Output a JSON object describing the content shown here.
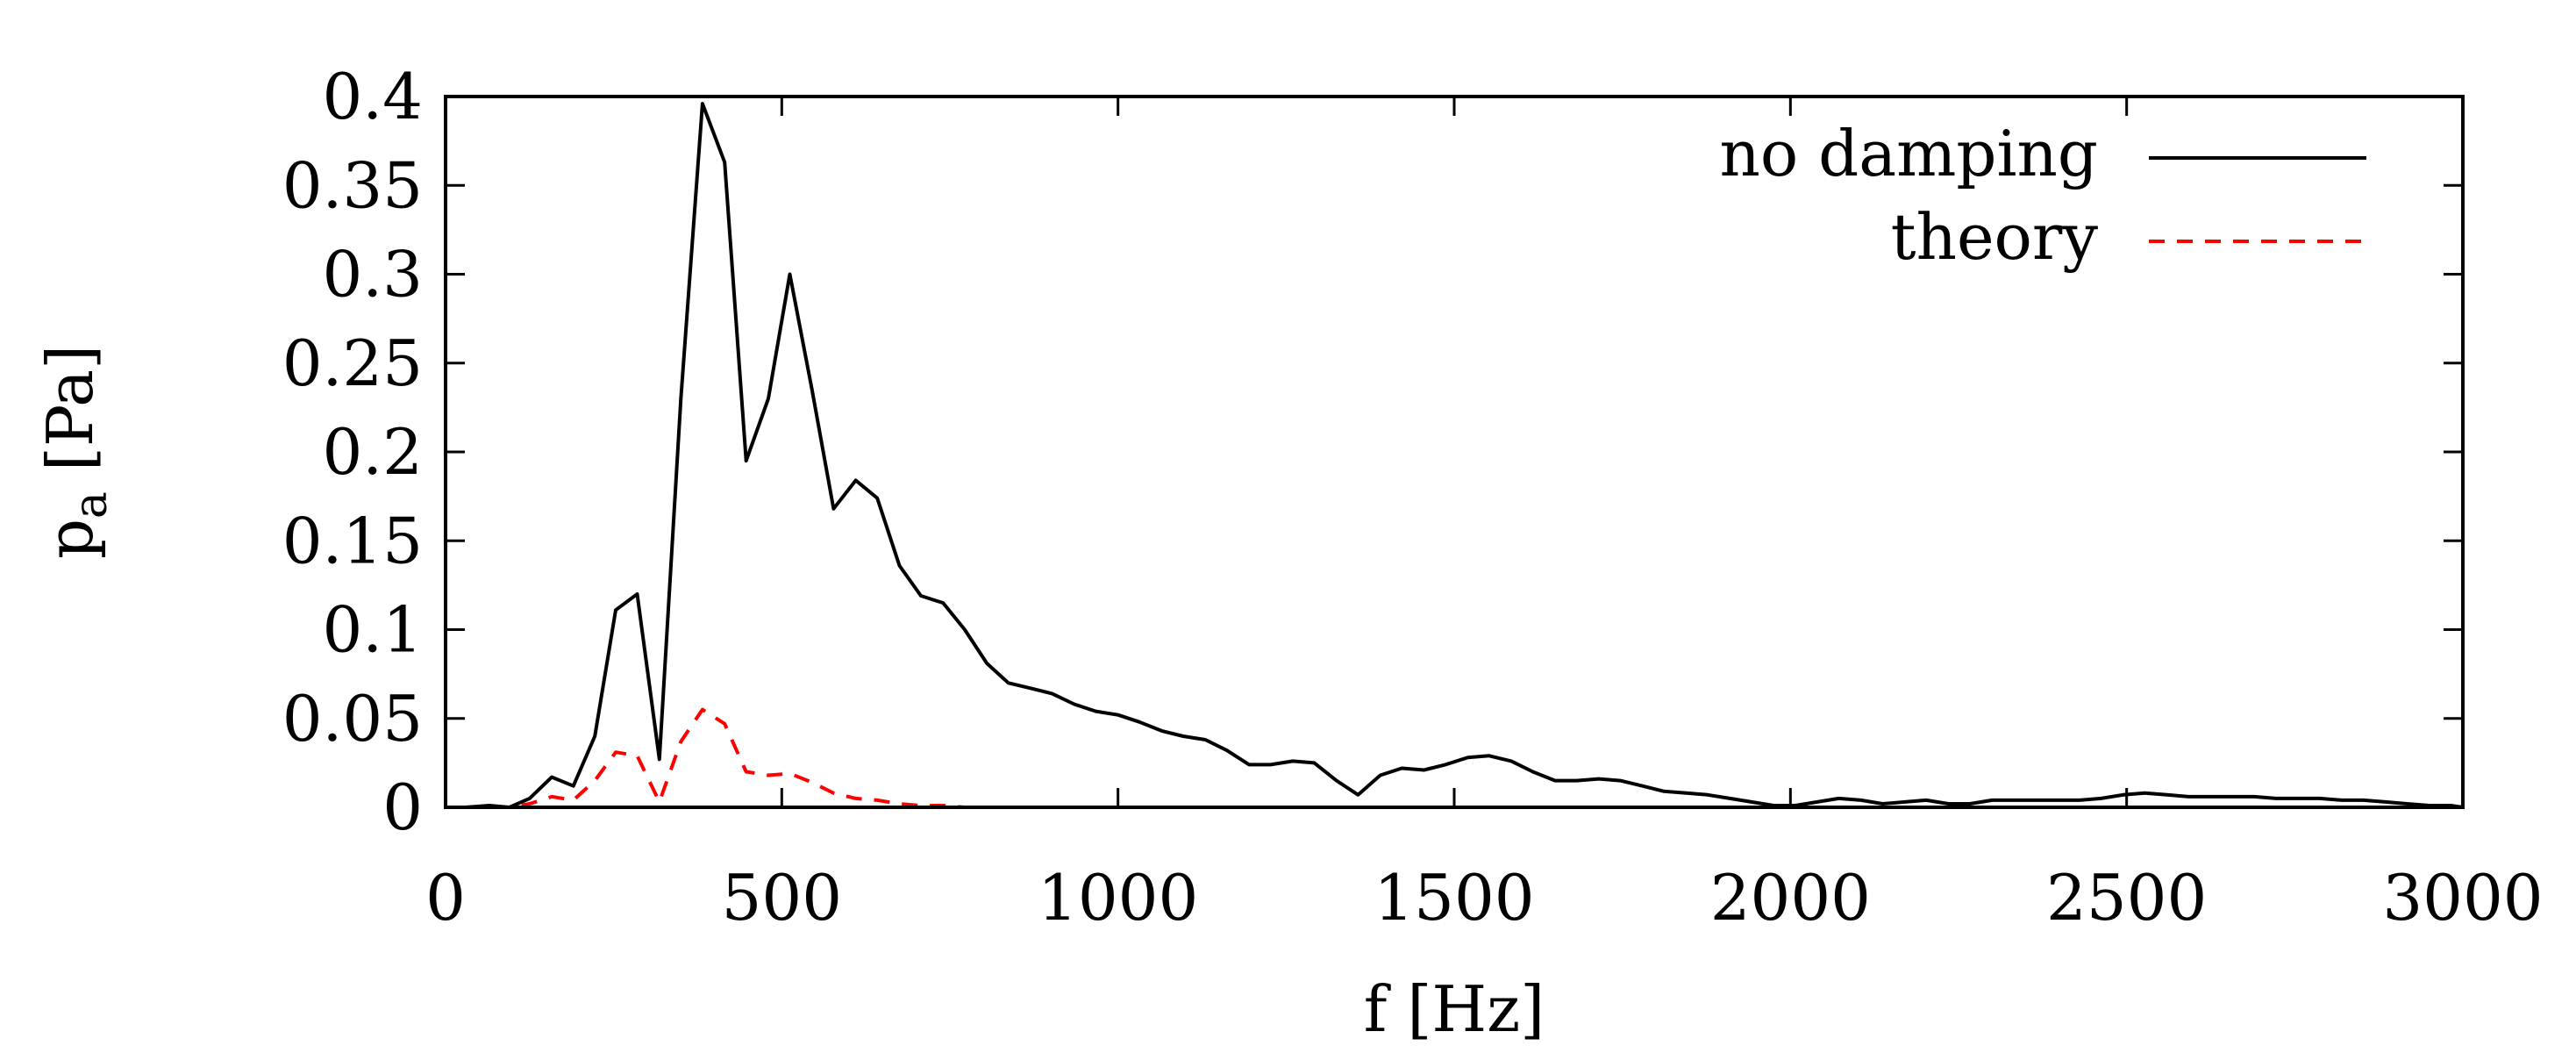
{
  "chart_data": {
    "type": "line",
    "title": "",
    "xlabel": "f [Hz]",
    "ylabel_main": "p",
    "ylabel_sub": "a",
    "ylabel_unit": " [Pa]",
    "xlim": [
      0,
      3000
    ],
    "ylim": [
      0,
      0.4
    ],
    "xticks": [
      0,
      500,
      1000,
      1500,
      2000,
      2500,
      3000
    ],
    "xtick_labels": [
      "0",
      "500",
      "1000",
      "1500",
      "2000",
      "2500",
      "3000"
    ],
    "yticks": [
      0,
      0.05,
      0.1,
      0.15,
      0.2,
      0.25,
      0.3,
      0.35,
      0.4
    ],
    "ytick_labels": [
      "0",
      "0.05",
      "0.1",
      "0.15",
      "0.2",
      "0.25",
      "0.3",
      "0.35",
      "0.4"
    ],
    "grid": false,
    "legend_position": "top-right",
    "series": [
      {
        "name": "no damping",
        "color": "#000000",
        "dash": "solid",
        "x": [
          30,
          65,
          95,
          125,
          158,
          190,
          222,
          253,
          285,
          318,
          350,
          382,
          415,
          447,
          480,
          512,
          545,
          577,
          610,
          642,
          675,
          707,
          740,
          772,
          805,
          837,
          870,
          902,
          935,
          967,
          1000,
          1032,
          1065,
          1097,
          1130,
          1162,
          1195,
          1227,
          1260,
          1292,
          1325,
          1357,
          1390,
          1422,
          1455,
          1487,
          1520,
          1552,
          1585,
          1617,
          1650,
          1682,
          1715,
          1747,
          1780,
          1812,
          1845,
          1877,
          1910,
          1942,
          1975,
          2007,
          2040,
          2072,
          2105,
          2137,
          2170,
          2202,
          2235,
          2267,
          2300,
          2332,
          2365,
          2397,
          2430,
          2462,
          2495,
          2527,
          2560,
          2592,
          2625,
          2657,
          2690,
          2722,
          2755,
          2787,
          2820,
          2852,
          2885,
          2917,
          2950,
          2982,
          3000
        ],
        "y": [
          0.0,
          0.001,
          0.0,
          0.005,
          0.017,
          0.012,
          0.04,
          0.111,
          0.12,
          0.027,
          0.23,
          0.396,
          0.363,
          0.195,
          0.23,
          0.3,
          0.235,
          0.168,
          0.184,
          0.174,
          0.136,
          0.119,
          0.115,
          0.1,
          0.081,
          0.07,
          0.067,
          0.064,
          0.058,
          0.054,
          0.052,
          0.048,
          0.043,
          0.04,
          0.038,
          0.032,
          0.024,
          0.024,
          0.026,
          0.025,
          0.015,
          0.007,
          0.018,
          0.022,
          0.021,
          0.024,
          0.028,
          0.029,
          0.026,
          0.02,
          0.015,
          0.015,
          0.016,
          0.015,
          0.012,
          0.009,
          0.008,
          0.007,
          0.005,
          0.003,
          0.001,
          0.001,
          0.003,
          0.005,
          0.004,
          0.002,
          0.003,
          0.004,
          0.002,
          0.002,
          0.004,
          0.004,
          0.004,
          0.004,
          0.004,
          0.005,
          0.007,
          0.008,
          0.007,
          0.006,
          0.006,
          0.006,
          0.006,
          0.005,
          0.005,
          0.005,
          0.004,
          0.004,
          0.003,
          0.002,
          0.001,
          0.001,
          0.0
        ]
      },
      {
        "name": "theory",
        "color": "#ff0000",
        "dash": "dashed",
        "x": [
          30,
          65,
          95,
          125,
          158,
          190,
          222,
          253,
          285,
          318,
          350,
          382,
          415,
          447,
          480,
          512,
          545,
          577,
          610,
          642,
          675,
          707,
          740,
          772,
          805,
          837,
          870,
          902,
          935,
          967,
          1000,
          1032,
          1065,
          1097,
          1130,
          1162,
          1195,
          1227,
          1260,
          1292,
          1325,
          1357,
          1390,
          1422,
          1455,
          1487,
          1520,
          1552,
          1585,
          1617,
          1650,
          1682,
          1715,
          1747,
          1780,
          1812,
          1845,
          1877,
          1910,
          1942,
          1975,
          2007,
          2040,
          2072,
          2105,
          2137,
          2170,
          2202,
          2235,
          2267,
          2300,
          2332,
          2365,
          2397,
          2430,
          2462,
          2495,
          2527,
          2560,
          2592,
          2625,
          2657,
          2690,
          2722,
          2755,
          2787,
          2820,
          2852,
          2885,
          2917,
          2950,
          2982,
          3000
        ],
        "y": [
          0.0,
          0.0,
          0.0,
          0.002,
          0.006,
          0.004,
          0.015,
          0.031,
          0.029,
          0.003,
          0.037,
          0.055,
          0.047,
          0.02,
          0.018,
          0.019,
          0.014,
          0.008,
          0.005,
          0.004,
          0.002,
          0.001,
          0.001,
          0.0,
          0.0,
          0.0,
          0.0,
          0.0,
          0.0,
          0.0,
          0.0,
          0.0,
          0.0,
          0.0,
          0.0,
          0.0,
          0.0,
          0.0,
          0.0,
          0.0,
          0.0,
          0.0,
          0.0,
          0.0,
          0.0,
          0.0,
          0.0,
          0.0,
          0.0,
          0.0,
          0.0,
          0.0,
          0.0,
          0.0,
          0.0,
          0.0,
          0.0,
          0.0,
          0.0,
          0.0,
          0.0,
          0.0,
          0.0,
          0.0,
          0.0,
          0.0,
          0.0,
          0.0,
          0.0,
          0.0,
          0.0,
          0.0,
          0.0,
          0.0,
          0.0,
          0.0,
          0.0,
          0.0,
          0.0,
          0.0,
          0.0,
          0.0,
          0.0,
          0.0,
          0.0,
          0.0,
          0.0,
          0.0,
          0.0,
          0.0,
          0.0,
          0.0,
          0.0
        ]
      }
    ]
  }
}
